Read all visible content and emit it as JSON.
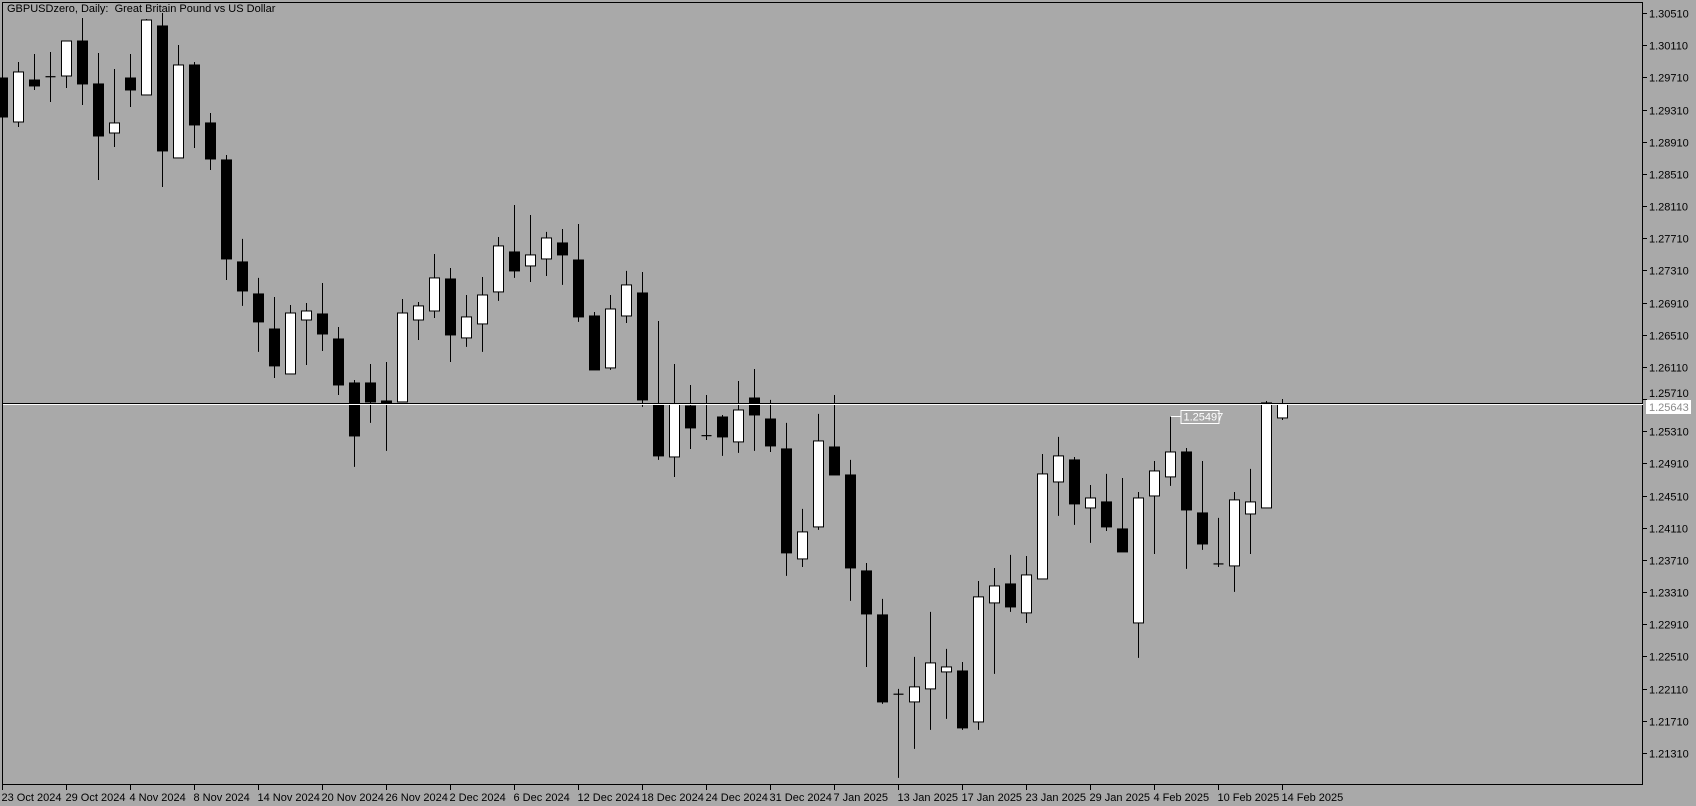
{
  "window": {
    "title": "GBPUSDzero, Daily:  Great Britain Pound vs US Dollar"
  },
  "colors": {
    "background": "#a9a9a9",
    "bull_candle": "#ffffff",
    "bear_candle": "#000000",
    "axis": "#000000",
    "current_price_line": "#ffffff"
  },
  "chart_data": {
    "type": "candlestick",
    "title": "GBPUSDzero, Daily:  Great Britain Pound vs US Dollar",
    "symbol": "GBPUSDzero",
    "timeframe": "Daily",
    "description": "Great Britain Pound vs US Dollar",
    "grid": false,
    "ylim": [
      1.20911,
      1.30647
    ],
    "y_axis_position": "right",
    "y_ticks": [
      "1.30510",
      "1.30110",
      "1.29710",
      "1.29310",
      "1.28910",
      "1.28510",
      "1.28110",
      "1.27710",
      "1.27310",
      "1.26910",
      "1.26510",
      "1.26110",
      "1.25710",
      "1.25310",
      "1.24910",
      "1.24510",
      "1.24110",
      "1.23710",
      "1.23310",
      "1.22910",
      "1.22510",
      "1.22110",
      "1.21710",
      "1.21310"
    ],
    "x_ticks": [
      {
        "date": "2024-10-23",
        "label": "23 Oct 2024"
      },
      {
        "date": "2024-10-29",
        "label": "29 Oct 2024"
      },
      {
        "date": "2024-11-04",
        "label": "4 Nov 2024"
      },
      {
        "date": "2024-11-08",
        "label": "8 Nov 2024"
      },
      {
        "date": "2024-11-14",
        "label": "14 Nov 2024"
      },
      {
        "date": "2024-11-20",
        "label": "20 Nov 2024"
      },
      {
        "date": "2024-11-26",
        "label": "26 Nov 2024"
      },
      {
        "date": "2024-12-02",
        "label": "2 Dec 2024"
      },
      {
        "date": "2024-12-06",
        "label": "6 Dec 2024"
      },
      {
        "date": "2024-12-12",
        "label": "12 Dec 2024"
      },
      {
        "date": "2024-12-18",
        "label": "18 Dec 2024"
      },
      {
        "date": "2024-12-24",
        "label": "24 Dec 2024"
      },
      {
        "date": "2024-12-31",
        "label": "31 Dec 2024"
      },
      {
        "date": "2025-01-07",
        "label": "7 Jan 2025"
      },
      {
        "date": "2025-01-13",
        "label": "13 Jan 2025"
      },
      {
        "date": "2025-01-17",
        "label": "17 Jan 2025"
      },
      {
        "date": "2025-01-23",
        "label": "23 Jan 2025"
      },
      {
        "date": "2025-01-29",
        "label": "29 Jan 2025"
      },
      {
        "date": "2025-02-04",
        "label": "4 Feb 2025"
      },
      {
        "date": "2025-02-10",
        "label": "10 Feb 2025"
      },
      {
        "date": "2025-02-14",
        "label": "14 Feb 2025"
      }
    ],
    "current_price": {
      "value": 1.25643,
      "label": "1.25643"
    },
    "annotations": [
      {
        "date": "2025-02-05",
        "price": 1.25497,
        "label": "1.25497"
      }
    ],
    "columns": [
      "date",
      "open",
      "high",
      "low",
      "close"
    ],
    "ohlc": [
      [
        "2024-10-23",
        1.29702,
        1.2974,
        1.2918,
        1.29217
      ],
      [
        "2024-10-24",
        1.29155,
        1.29901,
        1.29093,
        1.29777
      ],
      [
        "2024-10-25",
        1.29677,
        1.30001,
        1.29553,
        1.29603
      ],
      [
        "2024-10-28",
        1.29715,
        1.30025,
        1.29404,
        1.29718
      ],
      [
        "2024-10-29",
        1.29727,
        1.30162,
        1.29578,
        1.30162
      ],
      [
        "2024-10-30",
        1.30162,
        1.30448,
        1.29367,
        1.29628
      ],
      [
        "2024-10-31",
        1.29628,
        1.30013,
        1.28434,
        1.28981
      ],
      [
        "2024-11-01",
        1.29018,
        1.29814,
        1.28844,
        1.29143
      ],
      [
        "2024-11-04",
        1.29702,
        1.30001,
        1.29342,
        1.29553
      ],
      [
        "2024-11-05",
        1.29491,
        1.30436,
        1.29491,
        1.30423
      ],
      [
        "2024-11-06",
        1.30349,
        1.3051,
        1.28347,
        1.28795
      ],
      [
        "2024-11-07",
        1.28708,
        1.30113,
        1.28708,
        1.29864
      ],
      [
        "2024-11-08",
        1.29864,
        1.29901,
        1.28832,
        1.29118
      ],
      [
        "2024-11-11",
        1.29143,
        1.29267,
        1.28558,
        1.28695
      ],
      [
        "2024-11-12",
        1.28683,
        1.28745,
        1.27191,
        1.27452
      ],
      [
        "2024-11-13",
        1.27415,
        1.27701,
        1.26868,
        1.27054
      ],
      [
        "2024-11-14",
        1.27017,
        1.27216,
        1.26296,
        1.26669
      ],
      [
        "2024-11-15",
        1.26581,
        1.26979,
        1.25972,
        1.26122
      ],
      [
        "2024-11-18",
        1.26022,
        1.2688,
        1.26022,
        1.2678
      ],
      [
        "2024-11-19",
        1.26693,
        1.26905,
        1.26134,
        1.26805
      ],
      [
        "2024-11-20",
        1.26768,
        1.27153,
        1.26308,
        1.26519
      ],
      [
        "2024-11-21",
        1.26457,
        1.26606,
        1.25761,
        1.25885
      ],
      [
        "2024-11-22",
        1.2591,
        1.25947,
        1.24866,
        1.25251
      ],
      [
        "2024-11-25",
        1.2591,
        1.26146,
        1.25413,
        1.25674
      ],
      [
        "2024-11-26",
        1.25686,
        1.26171,
        1.25065,
        1.25662
      ],
      [
        "2024-11-27",
        1.25674,
        1.26954,
        1.25674,
        1.2678
      ],
      [
        "2024-11-28",
        1.26693,
        1.26917,
        1.26445,
        1.26868
      ],
      [
        "2024-11-29",
        1.26805,
        1.27514,
        1.26718,
        1.27216
      ],
      [
        "2024-12-02",
        1.27203,
        1.2734,
        1.26171,
        1.26507
      ],
      [
        "2024-12-03",
        1.2647,
        1.27004,
        1.26358,
        1.26731
      ],
      [
        "2024-12-04",
        1.26644,
        1.27228,
        1.26296,
        1.27004
      ],
      [
        "2024-12-05",
        1.27042,
        1.27725,
        1.2693,
        1.27614
      ],
      [
        "2024-12-06",
        1.27539,
        1.28123,
        1.27216,
        1.27303
      ],
      [
        "2024-12-09",
        1.27365,
        1.27999,
        1.27166,
        1.27502
      ],
      [
        "2024-12-10",
        1.27452,
        1.27788,
        1.2724,
        1.27713
      ],
      [
        "2024-12-11",
        1.27651,
        1.27825,
        1.27129,
        1.27502
      ],
      [
        "2024-12-12",
        1.27439,
        1.27887,
        1.26669,
        1.26731
      ],
      [
        "2024-12-13",
        1.26743,
        1.26793,
        1.26072,
        1.26072
      ],
      [
        "2024-12-16",
        1.26097,
        1.27004,
        1.26072,
        1.2683
      ],
      [
        "2024-12-17",
        1.26743,
        1.27303,
        1.26656,
        1.27129
      ],
      [
        "2024-12-18",
        1.27029,
        1.2729,
        1.25612,
        1.25699
      ],
      [
        "2024-12-19",
        1.25649,
        1.26681,
        1.24953,
        1.25003
      ],
      [
        "2024-12-20",
        1.2499,
        1.26146,
        1.24741,
        1.25649
      ],
      [
        "2024-12-23",
        1.25624,
        1.25885,
        1.25089,
        1.25351
      ],
      [
        "2024-12-24",
        1.25251,
        1.25761,
        1.25201,
        1.25255
      ],
      [
        "2024-12-26",
        1.25487,
        1.25512,
        1.25003,
        1.25239
      ],
      [
        "2024-12-27",
        1.25177,
        1.25935,
        1.2504,
        1.25574
      ],
      [
        "2024-12-30",
        1.25723,
        1.26084,
        1.25065,
        1.25512
      ],
      [
        "2024-12-31",
        1.25462,
        1.25699,
        1.25052,
        1.25127
      ],
      [
        "2025-01-02",
        1.2509,
        1.25413,
        1.23511,
        1.23797
      ],
      [
        "2025-01-03",
        1.23722,
        1.24344,
        1.23622,
        1.24058
      ],
      [
        "2025-01-06",
        1.2412,
        1.25525,
        1.24083,
        1.25189
      ],
      [
        "2025-01-07",
        1.25114,
        1.25761,
        1.24766,
        1.24766
      ],
      [
        "2025-01-08",
        1.24766,
        1.24953,
        1.232,
        1.2361
      ],
      [
        "2025-01-09",
        1.23573,
        1.23672,
        1.22379,
        1.23038
      ],
      [
        "2025-01-10",
        1.23026,
        1.23225,
        1.21919,
        1.21944
      ],
      [
        "2025-01-13",
        1.22031,
        1.22106,
        1.20999,
        1.2204
      ],
      [
        "2025-01-14",
        1.21944,
        1.22504,
        1.2136,
        1.22131
      ],
      [
        "2025-01-15",
        1.22106,
        1.23063,
        1.21596,
        1.22429
      ],
      [
        "2025-01-16",
        1.22317,
        1.22603,
        1.21733,
        1.22379
      ],
      [
        "2025-01-17",
        1.22329,
        1.22441,
        1.21596,
        1.21621
      ],
      [
        "2025-01-20",
        1.21695,
        1.23448,
        1.21596,
        1.2325
      ],
      [
        "2025-01-21",
        1.23175,
        1.2361,
        1.22292,
        1.23386
      ],
      [
        "2025-01-22",
        1.23411,
        1.23772,
        1.23063,
        1.23125
      ],
      [
        "2025-01-23",
        1.23051,
        1.23759,
        1.22926,
        1.23523
      ],
      [
        "2025-01-24",
        1.23473,
        1.25027,
        1.23473,
        1.24779
      ],
      [
        "2025-01-27",
        1.24679,
        1.25239,
        1.24257,
        1.25003
      ],
      [
        "2025-01-28",
        1.24953,
        1.2499,
        1.24145,
        1.24406
      ],
      [
        "2025-01-29",
        1.24356,
        1.24642,
        1.23921,
        1.2448
      ],
      [
        "2025-01-30",
        1.24431,
        1.24779,
        1.2407,
        1.2412
      ],
      [
        "2025-01-31",
        1.24095,
        1.24729,
        1.23809,
        1.23809
      ],
      [
        "2025-02-03",
        1.22926,
        1.24555,
        1.22491,
        1.2448
      ],
      [
        "2025-02-04",
        1.24505,
        1.2494,
        1.23784,
        1.24816
      ],
      [
        "2025-02-05",
        1.24742,
        1.25497,
        1.2463,
        1.25052
      ],
      [
        "2025-02-06",
        1.25052,
        1.25102,
        1.23598,
        1.24331
      ],
      [
        "2025-02-07",
        1.24294,
        1.2494,
        1.23834,
        1.23908
      ],
      [
        "2025-02-10",
        1.2366,
        1.24232,
        1.23622,
        1.23655
      ],
      [
        "2025-02-11",
        1.23635,
        1.24555,
        1.23312,
        1.24456
      ],
      [
        "2025-02-12",
        1.24281,
        1.24841,
        1.23784,
        1.24431
      ],
      [
        "2025-02-13",
        1.24356,
        1.25686,
        1.24356,
        1.25662
      ],
      [
        "2025-02-14",
        1.25475,
        1.25711,
        1.2545,
        1.25643
      ]
    ]
  }
}
